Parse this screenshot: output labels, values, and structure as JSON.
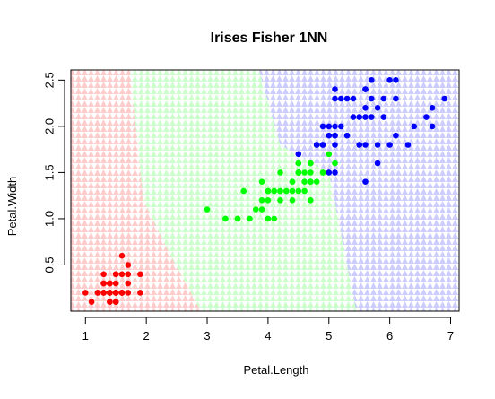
{
  "chart_data": {
    "type": "scatter",
    "title": "Irises Fisher 1NN",
    "xlabel": "Petal.Length",
    "ylabel": "Petal.Width",
    "xlim": [
      0.76,
      7.14
    ],
    "ylim": [
      -0.0,
      2.61
    ],
    "xticks": [
      1,
      2,
      3,
      4,
      5,
      6,
      7
    ],
    "yticks": [
      0.5,
      1.0,
      1.5,
      2.0,
      2.5
    ],
    "xtick_labels": [
      "1",
      "2",
      "3",
      "4",
      "5",
      "6",
      "7"
    ],
    "ytick_labels": [
      "0.5",
      "1.0",
      "1.5",
      "2.0",
      "2.5"
    ],
    "grid": false,
    "background": {
      "description": "1NN decision regions",
      "regions": [
        {
          "class": "setosa",
          "color": "#ffb3b3",
          "boundary": [
            [
              1.73,
              2.61
            ],
            [
              1.95,
              1.2
            ],
            [
              2.4,
              0.6
            ],
            [
              2.9,
              0.0
            ]
          ]
        },
        {
          "class": "versicolor",
          "color": "#b3ffb3",
          "boundary": [
            [
              3.85,
              2.61
            ],
            [
              4.2,
              1.8
            ],
            [
              5.0,
              1.5
            ],
            [
              5.45,
              0.0
            ]
          ]
        },
        {
          "class": "virginica",
          "color": "#b3b3ff"
        }
      ]
    },
    "series": [
      {
        "color": "#ff0000",
        "points": [
          [
            1.4,
            0.2
          ],
          [
            1.4,
            0.2
          ],
          [
            1.3,
            0.2
          ],
          [
            1.5,
            0.2
          ],
          [
            1.4,
            0.2
          ],
          [
            1.7,
            0.4
          ],
          [
            1.4,
            0.3
          ],
          [
            1.5,
            0.2
          ],
          [
            1.4,
            0.2
          ],
          [
            1.5,
            0.1
          ],
          [
            1.5,
            0.2
          ],
          [
            1.6,
            0.2
          ],
          [
            1.4,
            0.1
          ],
          [
            1.1,
            0.1
          ],
          [
            1.2,
            0.2
          ],
          [
            1.5,
            0.4
          ],
          [
            1.3,
            0.4
          ],
          [
            1.4,
            0.3
          ],
          [
            1.7,
            0.3
          ],
          [
            1.5,
            0.3
          ],
          [
            1.7,
            0.2
          ],
          [
            1.5,
            0.4
          ],
          [
            1.0,
            0.2
          ],
          [
            1.7,
            0.5
          ],
          [
            1.9,
            0.2
          ],
          [
            1.6,
            0.2
          ],
          [
            1.6,
            0.4
          ],
          [
            1.5,
            0.2
          ],
          [
            1.4,
            0.2
          ],
          [
            1.6,
            0.2
          ],
          [
            1.6,
            0.2
          ],
          [
            1.5,
            0.4
          ],
          [
            1.5,
            0.1
          ],
          [
            1.4,
            0.2
          ],
          [
            1.5,
            0.2
          ],
          [
            1.2,
            0.2
          ],
          [
            1.3,
            0.2
          ],
          [
            1.4,
            0.1
          ],
          [
            1.3,
            0.2
          ],
          [
            1.5,
            0.2
          ],
          [
            1.3,
            0.3
          ],
          [
            1.3,
            0.3
          ],
          [
            1.3,
            0.2
          ],
          [
            1.6,
            0.6
          ],
          [
            1.9,
            0.4
          ],
          [
            1.4,
            0.3
          ],
          [
            1.6,
            0.2
          ],
          [
            1.4,
            0.2
          ],
          [
            1.5,
            0.2
          ],
          [
            1.4,
            0.2
          ]
        ]
      },
      {
        "color": "#00ff00",
        "points": [
          [
            4.7,
            1.4
          ],
          [
            4.5,
            1.5
          ],
          [
            4.9,
            1.5
          ],
          [
            4.0,
            1.3
          ],
          [
            4.6,
            1.5
          ],
          [
            4.5,
            1.3
          ],
          [
            4.7,
            1.6
          ],
          [
            3.3,
            1.0
          ],
          [
            4.6,
            1.3
          ],
          [
            3.9,
            1.4
          ],
          [
            3.5,
            1.0
          ],
          [
            4.2,
            1.5
          ],
          [
            4.0,
            1.0
          ],
          [
            4.7,
            1.4
          ],
          [
            3.6,
            1.3
          ],
          [
            4.4,
            1.4
          ],
          [
            4.5,
            1.5
          ],
          [
            4.1,
            1.0
          ],
          [
            4.5,
            1.5
          ],
          [
            3.9,
            1.1
          ],
          [
            4.8,
            1.8
          ],
          [
            4.0,
            1.3
          ],
          [
            4.9,
            1.5
          ],
          [
            4.7,
            1.2
          ],
          [
            4.3,
            1.3
          ],
          [
            4.4,
            1.4
          ],
          [
            4.8,
            1.4
          ],
          [
            5.0,
            1.7
          ],
          [
            4.5,
            1.5
          ],
          [
            3.5,
            1.0
          ],
          [
            3.8,
            1.1
          ],
          [
            3.7,
            1.0
          ],
          [
            3.9,
            1.2
          ],
          [
            5.1,
            1.6
          ],
          [
            4.5,
            1.5
          ],
          [
            4.5,
            1.6
          ],
          [
            4.7,
            1.5
          ],
          [
            4.4,
            1.3
          ],
          [
            4.1,
            1.3
          ],
          [
            4.0,
            1.3
          ],
          [
            4.4,
            1.2
          ],
          [
            4.6,
            1.4
          ],
          [
            4.0,
            1.2
          ],
          [
            3.3,
            1.0
          ],
          [
            4.2,
            1.3
          ],
          [
            4.2,
            1.2
          ],
          [
            4.2,
            1.3
          ],
          [
            4.3,
            1.3
          ],
          [
            3.0,
            1.1
          ],
          [
            4.1,
            1.3
          ]
        ]
      },
      {
        "color": "#0000ff",
        "points": [
          [
            6.0,
            2.5
          ],
          [
            5.1,
            1.9
          ],
          [
            5.9,
            2.1
          ],
          [
            5.6,
            1.8
          ],
          [
            5.8,
            2.2
          ],
          [
            6.6,
            2.1
          ],
          [
            4.5,
            1.7
          ],
          [
            6.3,
            1.8
          ],
          [
            5.8,
            1.8
          ],
          [
            6.1,
            2.5
          ],
          [
            5.1,
            2.0
          ],
          [
            5.3,
            1.9
          ],
          [
            5.5,
            2.1
          ],
          [
            5.0,
            2.0
          ],
          [
            5.1,
            2.4
          ],
          [
            5.3,
            2.3
          ],
          [
            5.5,
            1.8
          ],
          [
            6.7,
            2.2
          ],
          [
            6.9,
            2.3
          ],
          [
            5.0,
            1.5
          ],
          [
            5.7,
            2.3
          ],
          [
            4.9,
            2.0
          ],
          [
            6.7,
            2.0
          ],
          [
            4.9,
            1.8
          ],
          [
            5.7,
            2.1
          ],
          [
            6.0,
            1.8
          ],
          [
            4.8,
            1.8
          ],
          [
            4.9,
            1.8
          ],
          [
            5.6,
            2.1
          ],
          [
            5.8,
            1.6
          ],
          [
            6.1,
            1.9
          ],
          [
            6.4,
            2.0
          ],
          [
            5.6,
            2.2
          ],
          [
            5.1,
            1.5
          ],
          [
            5.6,
            1.4
          ],
          [
            6.1,
            2.3
          ],
          [
            5.6,
            2.4
          ],
          [
            5.5,
            1.8
          ],
          [
            4.8,
            1.8
          ],
          [
            5.4,
            2.1
          ],
          [
            5.6,
            2.4
          ],
          [
            5.1,
            2.3
          ],
          [
            5.1,
            1.9
          ],
          [
            5.9,
            2.3
          ],
          [
            5.7,
            2.5
          ],
          [
            5.2,
            2.3
          ],
          [
            5.0,
            1.9
          ],
          [
            5.2,
            2.0
          ],
          [
            5.4,
            2.3
          ],
          [
            5.1,
            1.8
          ]
        ]
      }
    ]
  }
}
